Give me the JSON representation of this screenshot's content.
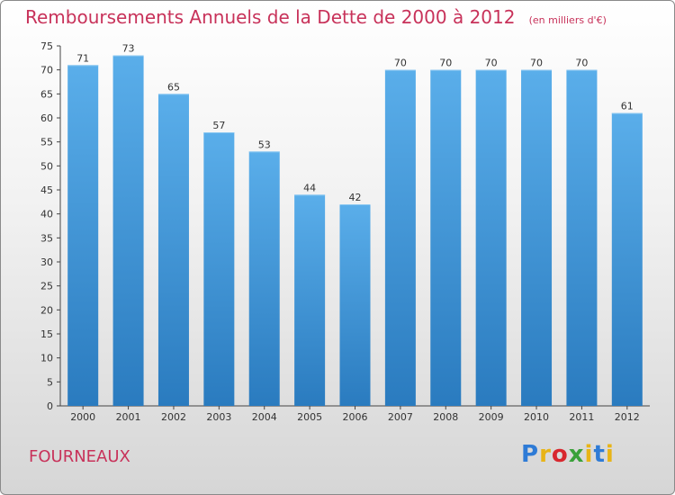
{
  "header": {
    "title": "Remboursements Annuels de la Dette de 2000 à 2012",
    "unit": "(en milliers d'€)"
  },
  "footer": {
    "commune": "FOURNEAUX",
    "brand": {
      "p": "P",
      "r": "r",
      "o": "o",
      "x": "x",
      "i1": "i",
      "t": "t",
      "i2": "i"
    }
  },
  "colors": {
    "title": "#c8325a",
    "bar_light": "#5aaeea",
    "bar_dark": "#2a7bbf",
    "brand_p": "#2e7bd6",
    "brand_r": "#e8b417",
    "brand_o": "#d8272e",
    "brand_x": "#3aa13a",
    "brand_i": "#e8b417",
    "brand_t": "#2e7bd6"
  },
  "chart_data": {
    "type": "bar",
    "title": "Remboursements Annuels de la Dette de 2000 à 2012",
    "subtitle": "(en milliers d'€)",
    "categories": [
      "2000",
      "2001",
      "2002",
      "2003",
      "2004",
      "2005",
      "2006",
      "2007",
      "2008",
      "2009",
      "2010",
      "2011",
      "2012"
    ],
    "values": [
      71,
      73,
      65,
      57,
      53,
      44,
      42,
      70,
      70,
      70,
      70,
      70,
      61
    ],
    "ylim": [
      0,
      75
    ],
    "yticks": [
      0,
      5,
      10,
      15,
      20,
      25,
      30,
      35,
      40,
      45,
      50,
      55,
      60,
      65,
      70,
      75
    ],
    "grid": false,
    "data_labels": true
  }
}
